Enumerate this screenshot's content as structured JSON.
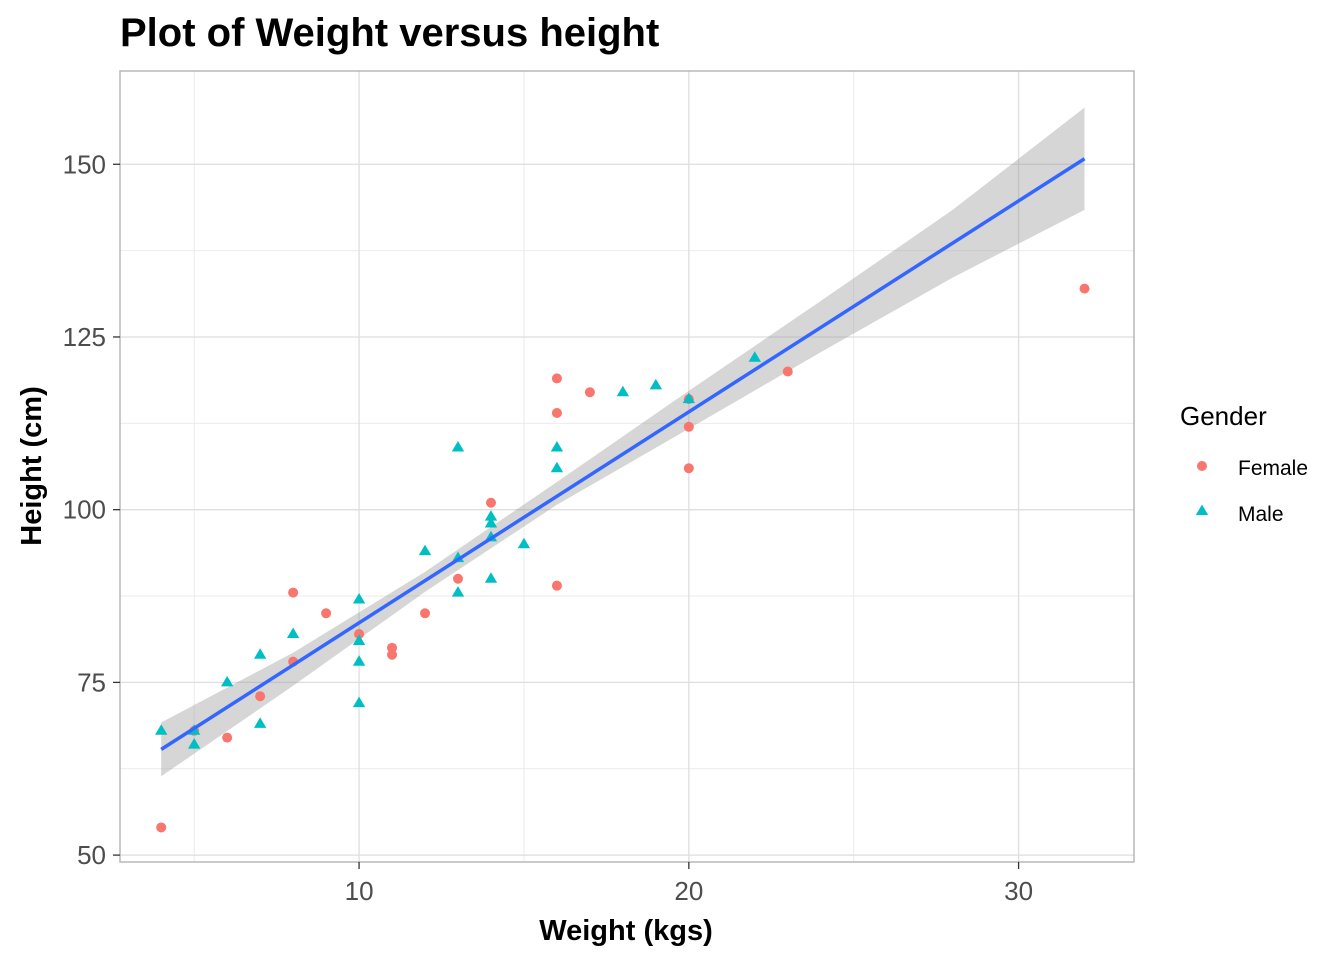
{
  "chart_data": {
    "type": "scatter",
    "title": "Plot of Weight versus height",
    "xlabel": "Weight (kgs)",
    "ylabel": "Height (cm)",
    "xlim": [
      2.75,
      33.5
    ],
    "ylim": [
      49,
      163.5
    ],
    "x_ticks": [
      10,
      20,
      30
    ],
    "x_tick_labels": [
      "10",
      "20",
      "30"
    ],
    "y_ticks": [
      50,
      75,
      100,
      125,
      150
    ],
    "y_tick_labels": [
      "50",
      "75",
      "100",
      "125",
      "150"
    ],
    "x_minor_ticks": [
      5,
      15,
      25
    ],
    "y_minor_ticks": [
      62.5,
      87.5,
      112.5,
      137.5
    ],
    "grid": true,
    "legend": {
      "title": "Gender",
      "placement": "right"
    },
    "colors": {
      "Female": "#F8766D",
      "Male": "#00BFC4",
      "fit": "#3366FF",
      "band": "#999999"
    },
    "series": [
      {
        "name": "Female",
        "marker": "circle",
        "points": [
          [
            4,
            54
          ],
          [
            5,
            68
          ],
          [
            6,
            67
          ],
          [
            7,
            73
          ],
          [
            8,
            88
          ],
          [
            8,
            78
          ],
          [
            9,
            85
          ],
          [
            10,
            82
          ],
          [
            11,
            80
          ],
          [
            11,
            79
          ],
          [
            12,
            85
          ],
          [
            13,
            90
          ],
          [
            14,
            101
          ],
          [
            16,
            119
          ],
          [
            16,
            114
          ],
          [
            16,
            89
          ],
          [
            17,
            117
          ],
          [
            20,
            116
          ],
          [
            20,
            112
          ],
          [
            20,
            106
          ],
          [
            23,
            120
          ],
          [
            32,
            132
          ]
        ]
      },
      {
        "name": "Male",
        "marker": "triangle",
        "points": [
          [
            4,
            68
          ],
          [
            5,
            68
          ],
          [
            5,
            66
          ],
          [
            6,
            75
          ],
          [
            7,
            79
          ],
          [
            7,
            69
          ],
          [
            8,
            82
          ],
          [
            10,
            87
          ],
          [
            10,
            81
          ],
          [
            10,
            78
          ],
          [
            10,
            72
          ],
          [
            12,
            94
          ],
          [
            13,
            109
          ],
          [
            13,
            93
          ],
          [
            13,
            88
          ],
          [
            14,
            99
          ],
          [
            14,
            98
          ],
          [
            14,
            96
          ],
          [
            14,
            90
          ],
          [
            15,
            95
          ],
          [
            16,
            109
          ],
          [
            16,
            106
          ],
          [
            18,
            117
          ],
          [
            19,
            118
          ],
          [
            20,
            116
          ],
          [
            22,
            122
          ]
        ]
      }
    ],
    "fit": {
      "type": "linear",
      "points": [
        [
          4,
          65.3
        ],
        [
          32,
          150.8
        ]
      ],
      "ci_band": [
        [
          4,
          61.4,
          69.2
        ],
        [
          8,
          74.5,
          79.3
        ],
        [
          12,
          88.1,
          91.0
        ],
        [
          16,
          100.7,
          104.0
        ],
        [
          20,
          111.7,
          117.2
        ],
        [
          24,
          122.8,
          130.2
        ],
        [
          28,
          133.6,
          143.4
        ],
        [
          32,
          143.4,
          158.2
        ]
      ]
    }
  }
}
